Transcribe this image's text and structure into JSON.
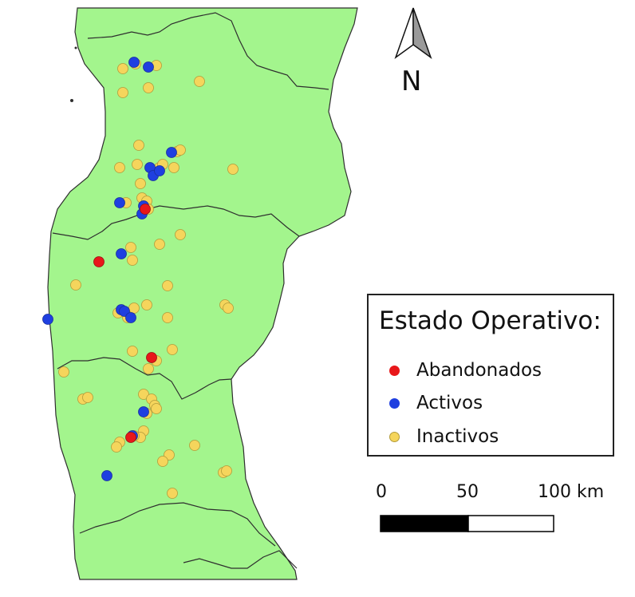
{
  "map": {
    "colors": {
      "land": "#a3f58d",
      "border": "#2e2e2e",
      "abandonados": "#e8171a",
      "activos": "#1f3fe0",
      "inactivos": "#f5d55c",
      "inactivos_stroke": "#b39b3a"
    }
  },
  "north_arrow": {
    "label": "N"
  },
  "legend": {
    "title": "Estado Operativo:",
    "items": [
      {
        "key": "abandonados",
        "label": "Abandonados",
        "color": "#e8171a"
      },
      {
        "key": "activos",
        "label": "Activos",
        "color": "#1f3fe0"
      },
      {
        "key": "inactivos",
        "label": "Inactivos",
        "color": "#f5d55c"
      }
    ]
  },
  "scale_bar": {
    "labels": [
      "0",
      "50",
      "100 km"
    ]
  }
}
